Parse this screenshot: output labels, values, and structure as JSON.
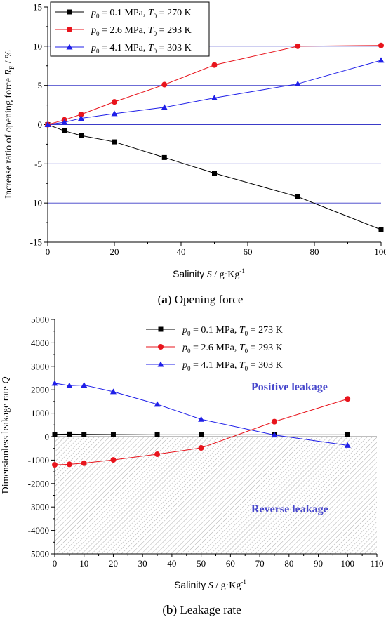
{
  "charts": [
    {
      "type": "line",
      "caption_letter": "(a)",
      "caption_text": "Opening force",
      "xlabel_word": "Salinity",
      "xlabel_symbol": "S",
      "xlabel_unit": "g·Kg",
      "xlabel_exp": "-1",
      "ylabel_text": "Increase ratio of opening force",
      "ylabel_symbol": "R",
      "ylabel_sub": "F",
      "ylabel_unit": "%",
      "xlim": [
        0,
        100
      ],
      "ylim": [
        -15,
        15
      ],
      "xticks": [
        "0",
        "20",
        "40",
        "60",
        "80",
        "100"
      ],
      "yticks": [
        "15",
        "10",
        "5",
        "0",
        "-5",
        "-10",
        "-15"
      ],
      "hlines": [
        10,
        5,
        0,
        -5,
        -10
      ],
      "legend_position": "top-left",
      "series": [
        {
          "name": "p0 = 0.1 MPa, T0 = 270 K",
          "p": "0.1",
          "T": "270",
          "color": "#000000",
          "marker": "square",
          "x": [
            0,
            5,
            10,
            20,
            35,
            50,
            75,
            100
          ],
          "y": [
            0,
            -0.8,
            -1.4,
            -2.2,
            -4.2,
            -6.2,
            -9.2,
            -13.4
          ]
        },
        {
          "name": "p0 = 2.6 MPa, T0 = 293 K",
          "p": "2.6",
          "T": "293",
          "color": "#e8141c",
          "marker": "circle",
          "x": [
            0,
            5,
            10,
            20,
            35,
            50,
            75,
            100
          ],
          "y": [
            0,
            0.6,
            1.3,
            2.9,
            5.1,
            7.6,
            10.0,
            10.1
          ]
        },
        {
          "name": "p0 = 4.1 MPa, T0 = 303 K",
          "p": "4.1",
          "T": "303",
          "color": "#1f1fe8",
          "marker": "triangle",
          "x": [
            0,
            5,
            10,
            20,
            35,
            50,
            75,
            100
          ],
          "y": [
            0,
            0.3,
            0.8,
            1.4,
            2.2,
            3.4,
            5.2,
            8.2
          ]
        }
      ]
    },
    {
      "type": "line",
      "caption_letter": "(b)",
      "caption_text": "Leakage rate",
      "xlabel_word": "Salinity",
      "xlabel_symbol": "S",
      "xlabel_unit": "g·Kg",
      "xlabel_exp": "-1",
      "ylabel_text": "Dimensionless leakage rate",
      "ylabel_symbol": "Q",
      "xlim": [
        0,
        110
      ],
      "ylim": [
        -5000,
        5000
      ],
      "xticks": [
        "0",
        "10",
        "20",
        "30",
        "40",
        "50",
        "60",
        "70",
        "80",
        "90",
        "100",
        "110"
      ],
      "yticks": [
        "5000",
        "4000",
        "3000",
        "2000",
        "1000",
        "0",
        "-1000",
        "-2000",
        "-3000",
        "-4000",
        "-5000"
      ],
      "annotations": {
        "positive": "Positive leakage",
        "reverse": "Reverse leakage"
      },
      "legend_position": "top-right",
      "series": [
        {
          "name": "p0 = 0.1 MPa, T0 = 273 K",
          "p": "0.1",
          "T": "273",
          "color": "#000000",
          "marker": "square",
          "x": [
            0,
            5,
            10,
            20,
            35,
            50,
            75,
            100
          ],
          "y": [
            100,
            110,
            100,
            90,
            80,
            80,
            80,
            80
          ]
        },
        {
          "name": "p0 = 2.6 MPa, T0 = 293 K",
          "p": "2.6",
          "T": "293",
          "color": "#e8141c",
          "marker": "circle",
          "x": [
            0,
            5,
            10,
            20,
            35,
            50,
            75,
            100
          ],
          "y": [
            -1200,
            -1180,
            -1130,
            -990,
            -750,
            -480,
            640,
            1610
          ]
        },
        {
          "name": "p0 = 4.1 MPa, T0 = 303 K",
          "p": "4.1",
          "T": "303",
          "color": "#1f1fe8",
          "marker": "triangle",
          "x": [
            0,
            5,
            10,
            20,
            35,
            50,
            75,
            100
          ],
          "y": [
            2280,
            2180,
            2200,
            1920,
            1380,
            740,
            70,
            -370
          ]
        }
      ]
    }
  ]
}
